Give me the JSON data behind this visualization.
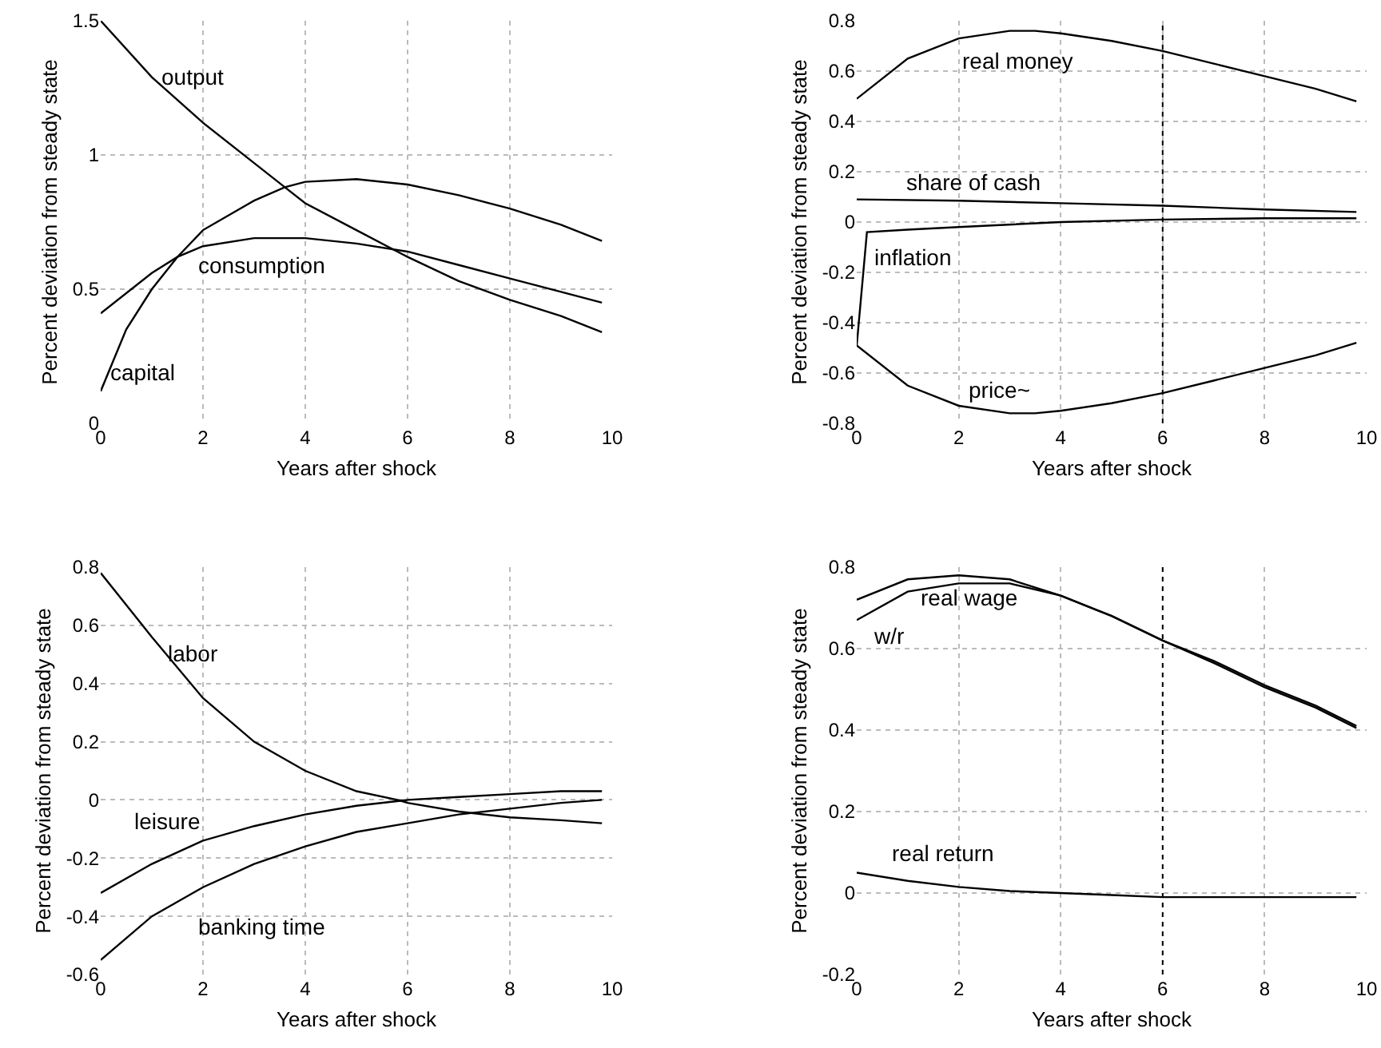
{
  "chart_data": [
    {
      "type": "line",
      "xlabel": "Years after shock",
      "ylabel": "Percent deviation from steady state",
      "xlim": [
        0,
        10
      ],
      "xticks": [
        0,
        2,
        4,
        6,
        8,
        10
      ],
      "ylim": [
        0,
        1.5
      ],
      "yticks": [
        0,
        0.5,
        1,
        1.5
      ],
      "grid": true,
      "legend": false,
      "line_style": "solid",
      "series": [
        {
          "name": "output",
          "color": "#000000",
          "x": [
            0,
            1,
            2,
            3,
            3.6,
            4,
            5,
            5.8,
            6,
            7,
            8,
            9,
            9.8
          ],
          "values": [
            1.5,
            1.29,
            1.12,
            0.97,
            0.88,
            0.82,
            0.72,
            0.64,
            0.62,
            0.53,
            0.46,
            0.4,
            0.34
          ]
        },
        {
          "name": "capital",
          "color": "#000000",
          "x": [
            0,
            0.5,
            1,
            1.5,
            2,
            3,
            3.6,
            4,
            5,
            6,
            7,
            8,
            9,
            9.8
          ],
          "values": [
            0.12,
            0.35,
            0.5,
            0.62,
            0.72,
            0.83,
            0.88,
            0.9,
            0.91,
            0.89,
            0.85,
            0.8,
            0.74,
            0.68
          ]
        },
        {
          "name": "consumption",
          "color": "#000000",
          "x": [
            0,
            1,
            1.5,
            2,
            3,
            4,
            5,
            6,
            7,
            8,
            9,
            9.8
          ],
          "values": [
            0.41,
            0.56,
            0.62,
            0.66,
            0.69,
            0.69,
            0.67,
            0.64,
            0.59,
            0.54,
            0.49,
            0.45
          ]
        }
      ]
    },
    {
      "type": "line",
      "xlabel": "Years after shock",
      "ylabel": "Percent deviation from steady state",
      "xlim": [
        0,
        10
      ],
      "xticks": [
        0,
        2,
        4,
        6,
        8,
        10
      ],
      "ylim": [
        -0.8,
        0.8
      ],
      "yticks": [
        -0.8,
        -0.6,
        -0.4,
        -0.2,
        0,
        0.2,
        0.4,
        0.6,
        0.8
      ],
      "grid": true,
      "legend": false,
      "line_style": "solid",
      "series": [
        {
          "name": "real money",
          "color": "#000000",
          "x": [
            0,
            1,
            2,
            3,
            3.5,
            4,
            5,
            6,
            7,
            8,
            9,
            9.8
          ],
          "values": [
            0.49,
            0.65,
            0.73,
            0.76,
            0.76,
            0.75,
            0.72,
            0.68,
            0.63,
            0.58,
            0.53,
            0.48
          ]
        },
        {
          "name": "share of cash",
          "color": "#000000",
          "x": [
            0,
            2,
            4,
            6,
            8,
            9.8
          ],
          "values": [
            0.09,
            0.085,
            0.075,
            0.065,
            0.05,
            0.04
          ]
        },
        {
          "name": "inflation",
          "color": "#000000",
          "x": [
            0,
            0.2,
            1,
            2,
            4,
            6,
            8,
            9.8
          ],
          "values": [
            -0.49,
            -0.04,
            -0.03,
            -0.02,
            0.0,
            0.01,
            0.015,
            0.015
          ]
        },
        {
          "name": "price~",
          "color": "#000000",
          "x": [
            0,
            1,
            2,
            3,
            3.5,
            4,
            5,
            6,
            7,
            8,
            9,
            9.8
          ],
          "values": [
            -0.49,
            -0.65,
            -0.73,
            -0.76,
            -0.76,
            -0.75,
            -0.72,
            -0.68,
            -0.63,
            -0.58,
            -0.53,
            -0.48
          ]
        }
      ],
      "ref_lines": [
        {
          "axis": "x",
          "value": 6,
          "color": "#000000",
          "line_style": "dotted"
        }
      ]
    },
    {
      "type": "line",
      "xlabel": "Years after shock",
      "ylabel": "Percent deviation from steady state",
      "xlim": [
        0,
        10
      ],
      "xticks": [
        0,
        2,
        4,
        6,
        8,
        10
      ],
      "ylim": [
        -0.6,
        0.8
      ],
      "yticks": [
        -0.6,
        -0.4,
        -0.2,
        0,
        0.2,
        0.4,
        0.6,
        0.8
      ],
      "grid": true,
      "legend": false,
      "line_style": "solid",
      "series": [
        {
          "name": "labor",
          "color": "#000000",
          "x": [
            0,
            1,
            2,
            3,
            4,
            5,
            5.8,
            6,
            7,
            8,
            9,
            9.8
          ],
          "values": [
            0.78,
            0.56,
            0.35,
            0.2,
            0.1,
            0.03,
            0.0,
            -0.01,
            -0.04,
            -0.06,
            -0.07,
            -0.08
          ]
        },
        {
          "name": "leisure",
          "color": "#000000",
          "x": [
            0,
            1,
            2,
            3,
            4,
            5,
            6,
            7,
            8,
            9,
            9.8
          ],
          "values": [
            -0.32,
            -0.22,
            -0.14,
            -0.09,
            -0.05,
            -0.02,
            0.0,
            0.01,
            0.02,
            0.03,
            0.03
          ]
        },
        {
          "name": "banking time",
          "color": "#000000",
          "x": [
            0,
            1,
            2,
            3,
            4,
            5,
            6,
            7,
            8,
            9,
            9.8
          ],
          "values": [
            -0.55,
            -0.4,
            -0.3,
            -0.22,
            -0.16,
            -0.11,
            -0.08,
            -0.05,
            -0.03,
            -0.01,
            0.0
          ]
        }
      ]
    },
    {
      "type": "line",
      "xlabel": "Years after shock",
      "ylabel": "Percent deviation from steady state",
      "xlim": [
        0,
        10
      ],
      "xticks": [
        0,
        2,
        4,
        6,
        8,
        10
      ],
      "ylim": [
        -0.2,
        0.8
      ],
      "yticks": [
        -0.2,
        0,
        0.2,
        0.4,
        0.6,
        0.8
      ],
      "grid": true,
      "legend": false,
      "line_style": "solid",
      "series": [
        {
          "name": "real wage",
          "color": "#000000",
          "x": [
            0,
            1,
            2,
            3,
            4,
            5,
            6,
            7,
            8,
            9,
            9.8
          ],
          "values": [
            0.72,
            0.77,
            0.78,
            0.77,
            0.73,
            0.68,
            0.62,
            0.57,
            0.51,
            0.46,
            0.41
          ]
        },
        {
          "name": "w/r",
          "color": "#000000",
          "x": [
            0,
            1,
            2,
            3,
            4,
            5,
            6,
            7,
            8,
            9,
            9.8
          ],
          "values": [
            0.67,
            0.74,
            0.76,
            0.76,
            0.73,
            0.68,
            0.62,
            0.565,
            0.505,
            0.455,
            0.405
          ]
        },
        {
          "name": "real return",
          "color": "#000000",
          "x": [
            0,
            1,
            2,
            3,
            4,
            5,
            6,
            8,
            9.8
          ],
          "values": [
            0.05,
            0.03,
            0.015,
            0.005,
            0.0,
            -0.005,
            -0.01,
            -0.01,
            -0.01
          ]
        }
      ],
      "ref_lines": [
        {
          "axis": "x",
          "value": 6,
          "color": "#000000",
          "line_style": "dotted"
        }
      ]
    }
  ]
}
